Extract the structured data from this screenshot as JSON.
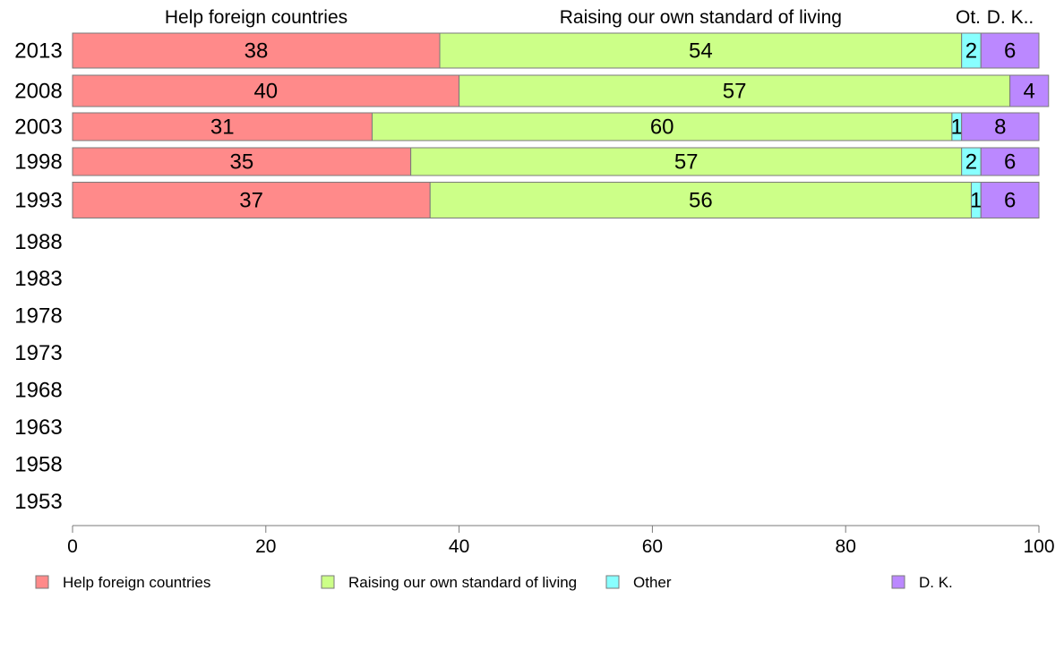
{
  "chart_data": {
    "type": "bar",
    "orientation": "horizontal",
    "stacked": true,
    "title": "",
    "xlabel": "",
    "ylabel": "",
    "xlim": [
      0,
      100
    ],
    "x_ticks": [
      0,
      20,
      40,
      60,
      80,
      100
    ],
    "categories": [
      "2013",
      "2008",
      "2003",
      "1998",
      "1993",
      "1988",
      "1983",
      "1978",
      "1973",
      "1968",
      "1963",
      "1958",
      "1953"
    ],
    "series": [
      {
        "name": "Help foreign countries",
        "header_label": "Help foreign countries",
        "color": "#FF8A8A",
        "values": [
          38,
          40,
          31,
          35,
          37,
          null,
          null,
          null,
          null,
          null,
          null,
          null,
          null
        ]
      },
      {
        "name": "Raising our own standard of living",
        "header_label": "Raising our own standard of living",
        "color": "#CCFF88",
        "values": [
          54,
          57,
          60,
          57,
          56,
          null,
          null,
          null,
          null,
          null,
          null,
          null,
          null
        ]
      },
      {
        "name": "Other",
        "header_label": "Ot.",
        "color": "#88FFFF",
        "values": [
          2,
          0,
          1,
          2,
          1,
          null,
          null,
          null,
          null,
          null,
          null,
          null,
          null
        ]
      },
      {
        "name": "D. K.",
        "header_label": "D. K..",
        "color": "#BB88FF",
        "values": [
          6,
          4,
          8,
          6,
          6,
          null,
          null,
          null,
          null,
          null,
          null,
          null,
          null
        ]
      }
    ],
    "legend_position": "bottom",
    "grid": false
  }
}
